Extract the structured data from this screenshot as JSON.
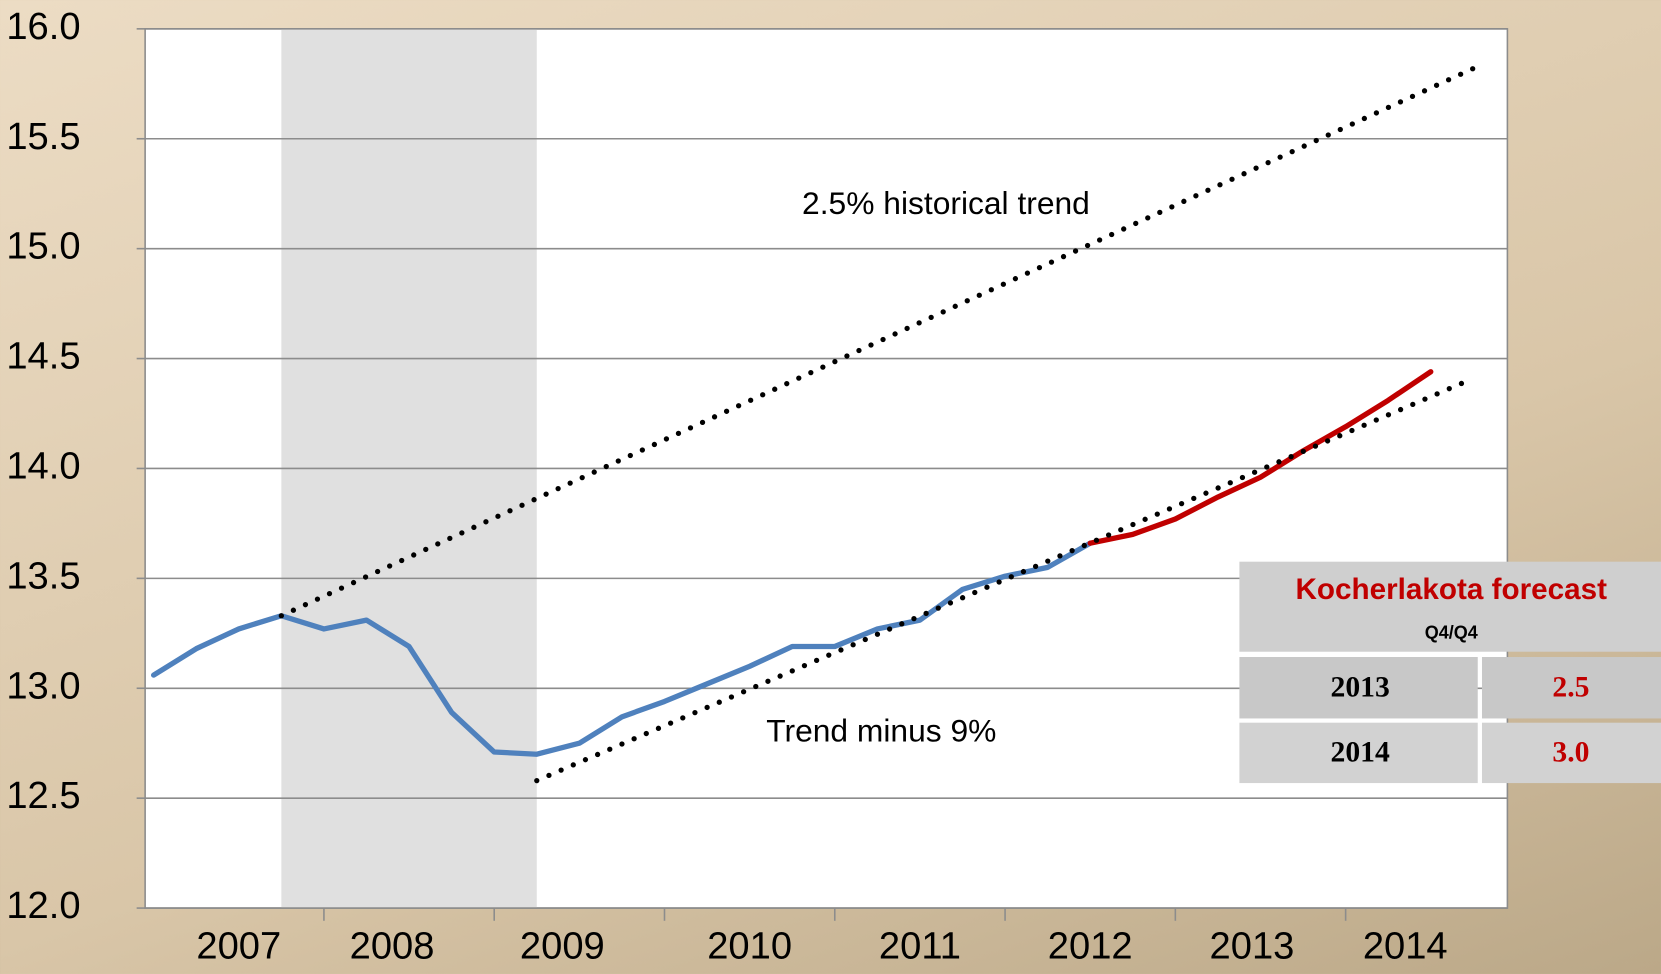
{
  "chart_data": {
    "type": "line",
    "xlim": [
      2006.95,
      2014.95
    ],
    "xticks": [
      2008,
      2009,
      2010,
      2011,
      2012,
      2013,
      2014
    ],
    "xtick_labels": [
      {
        "value": 2007.5,
        "label": "2007"
      },
      {
        "value": 2008.4,
        "label": "2008"
      },
      {
        "value": 2009.4,
        "label": "2009"
      },
      {
        "value": 2010.5,
        "label": "2010"
      },
      {
        "value": 2011.5,
        "label": "2011"
      },
      {
        "value": 2012.5,
        "label": "2012"
      },
      {
        "value": 2013.45,
        "label": "2013"
      },
      {
        "value": 2014.35,
        "label": "2014"
      }
    ],
    "ylim": [
      12.0,
      16.0
    ],
    "yticks": [
      {
        "value": 12.0,
        "label": "12.0"
      },
      12.5,
      {
        "value": 13.0,
        "label": "13.0"
      },
      13.5,
      {
        "value": 14.0,
        "label": "14.0"
      },
      14.5,
      {
        "value": 15.0,
        "label": "15.0"
      },
      15.5,
      {
        "value": 16.0,
        "label": "16.0"
      }
    ],
    "grid": true,
    "recession": [
      2007.75,
      2009.25
    ],
    "series": [
      {
        "color": "#4f81bd",
        "style": "solid",
        "x": [
          2007,
          2007.25,
          2007.5,
          2007.75,
          2008,
          2008.25,
          2008.5,
          2008.75,
          2009,
          2009.25,
          2009.5,
          2009.75,
          2010,
          2010.25,
          2010.5,
          2010.75,
          2011,
          2011.25,
          2011.5,
          2011.75,
          2012,
          2012.25,
          2012.5
        ],
        "values": [
          13.06,
          13.18,
          13.27,
          13.33,
          13.27,
          13.31,
          13.19,
          12.89,
          12.71,
          12.7,
          12.75,
          12.87,
          12.94,
          13.02,
          13.1,
          13.19,
          13.19,
          13.27,
          13.31,
          13.45,
          13.51,
          13.55,
          13.66
        ]
      },
      {
        "color": "#c00000",
        "style": "solid",
        "x": [
          2012.5,
          2012.75,
          2013,
          2013.25,
          2013.5,
          2013.75,
          2014,
          2014.25,
          2014.5
        ],
        "values": [
          13.66,
          13.7,
          13.77,
          13.87,
          13.96,
          14.08,
          14.19,
          14.31,
          14.44
        ]
      },
      {
        "color": "#000000",
        "style": "dotted",
        "x": [
          2007.75,
          2014.75
        ],
        "values": [
          13.33,
          15.82
        ]
      },
      {
        "color": "#000000",
        "style": "dotted",
        "x": [
          2009.25,
          2014.75
        ],
        "values": [
          12.58,
          14.41
        ]
      }
    ],
    "annotations": [
      "2.5% historical trend",
      "Trend minus 9%"
    ]
  },
  "forecast_table": {
    "title": "Kocherlakota forecast",
    "subtitle": "Q4/Q4",
    "rows": [
      [
        "2013",
        "2.5"
      ],
      [
        "2014",
        "3.0"
      ]
    ]
  }
}
